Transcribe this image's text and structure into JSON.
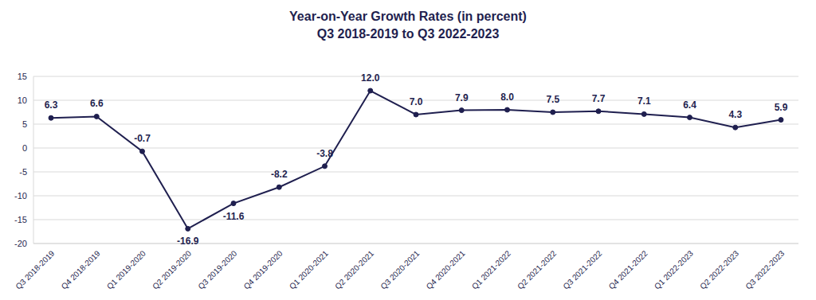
{
  "chart_data": {
    "type": "line",
    "title": "Year-on-Year Growth Rates (in percent)",
    "subtitle": "Q3 2018-2019 to Q3 2022-2023",
    "categories": [
      "Q3 2018-2019",
      "Q4 2018-2019",
      "Q1 2019-2020",
      "Q2 2019-2020",
      "Q3 2019-2020",
      "Q4 2019-2020",
      "Q1 2020-2021",
      "Q2 2020-2021",
      "Q3 2020-2021",
      "Q4 2020-2021",
      "Q1 2021-2022",
      "Q2 2021-2022",
      "Q3 2021-2022",
      "Q4 2021-2022",
      "Q1 2022-2023",
      "Q2 2022-2023",
      "Q3 2022-2023"
    ],
    "values": [
      6.3,
      6.6,
      -0.7,
      -16.9,
      -11.6,
      -8.2,
      -3.8,
      12.0,
      7.0,
      7.9,
      8.0,
      7.5,
      7.7,
      7.1,
      6.4,
      4.3,
      5.9
    ],
    "value_labels": [
      "6.3",
      "6.6",
      "-0.7",
      "-16.9",
      "-11.6",
      "-8.2",
      "-3.8",
      "12.0",
      "7.0",
      "7.9",
      "8.0",
      "7.5",
      "7.7",
      "7.1",
      "6.4",
      "4.3",
      "5.9"
    ],
    "color": "#1f1f4f",
    "marker": "circle",
    "data_labels": true,
    "ylim": [
      -20,
      15
    ],
    "yticks": [
      -20,
      -15,
      -10,
      -5,
      0,
      5,
      10,
      15
    ],
    "grid": true
  }
}
